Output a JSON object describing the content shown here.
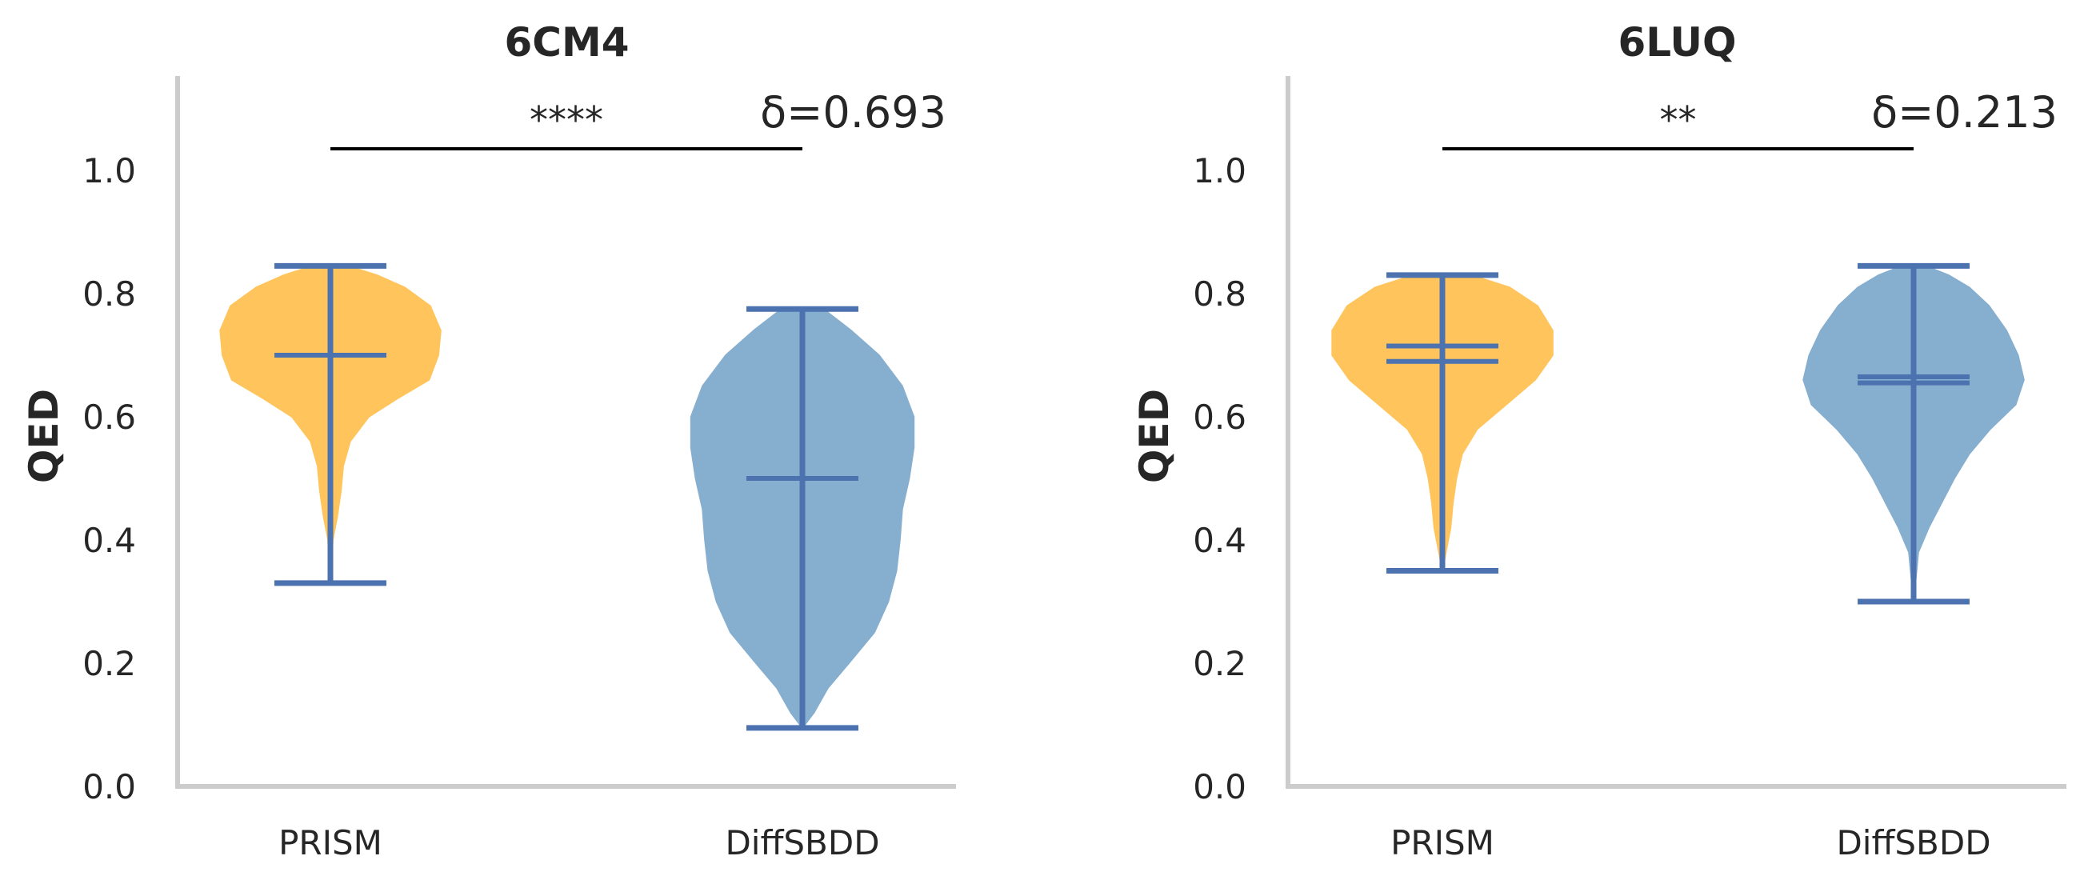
{
  "chart_data": [
    {
      "type": "violin",
      "title": "6CM4",
      "xlabel": "",
      "ylabel": "QED",
      "ylim": [
        0.0,
        1.15
      ],
      "yticks": [
        "0.0",
        "0.2",
        "0.4",
        "0.6",
        "0.8",
        "1.0"
      ],
      "categories": [
        "PRISM",
        "DiffSBDD"
      ],
      "grid": false,
      "series": [
        {
          "category": "PRISM",
          "color": "#FFC55C",
          "min": 0.33,
          "max": 0.845,
          "mean": 0.7,
          "median": 0.7,
          "density": [
            [
              0.33,
              0.0
            ],
            [
              0.4,
              0.02
            ],
            [
              0.44,
              0.06
            ],
            [
              0.48,
              0.09
            ],
            [
              0.52,
              0.11
            ],
            [
              0.56,
              0.17
            ],
            [
              0.6,
              0.33
            ],
            [
              0.63,
              0.58
            ],
            [
              0.66,
              0.85
            ],
            [
              0.7,
              0.93
            ],
            [
              0.74,
              0.95
            ],
            [
              0.78,
              0.86
            ],
            [
              0.81,
              0.64
            ],
            [
              0.83,
              0.4
            ],
            [
              0.845,
              0.15
            ]
          ]
        },
        {
          "category": "DiffSBDD",
          "color": "#86AECF",
          "min": 0.095,
          "max": 0.775,
          "mean": 0.5,
          "median": 0.5,
          "density": [
            [
              0.095,
              0.0
            ],
            [
              0.12,
              0.1
            ],
            [
              0.16,
              0.22
            ],
            [
              0.2,
              0.4
            ],
            [
              0.25,
              0.62
            ],
            [
              0.3,
              0.74
            ],
            [
              0.35,
              0.81
            ],
            [
              0.4,
              0.84
            ],
            [
              0.45,
              0.86
            ],
            [
              0.5,
              0.92
            ],
            [
              0.55,
              0.96
            ],
            [
              0.6,
              0.96
            ],
            [
              0.65,
              0.86
            ],
            [
              0.7,
              0.66
            ],
            [
              0.74,
              0.42
            ],
            [
              0.775,
              0.18
            ]
          ]
        }
      ],
      "annotation": {
        "bracket_y": 1.035,
        "stars": "****",
        "delta": "δ=0.693"
      }
    },
    {
      "type": "violin",
      "title": "6LUQ",
      "xlabel": "",
      "ylabel": "QED",
      "ylim": [
        0.0,
        1.15
      ],
      "yticks": [
        "0.0",
        "0.2",
        "0.4",
        "0.6",
        "0.8",
        "1.0"
      ],
      "categories": [
        "PRISM",
        "DiffSBDD"
      ],
      "grid": false,
      "series": [
        {
          "category": "PRISM",
          "color": "#FFC55C",
          "min": 0.35,
          "max": 0.83,
          "mean": 0.715,
          "median": 0.69,
          "density": [
            [
              0.35,
              0.0
            ],
            [
              0.38,
              0.03
            ],
            [
              0.42,
              0.07
            ],
            [
              0.46,
              0.09
            ],
            [
              0.5,
              0.12
            ],
            [
              0.54,
              0.17
            ],
            [
              0.58,
              0.3
            ],
            [
              0.62,
              0.55
            ],
            [
              0.66,
              0.8
            ],
            [
              0.7,
              0.95
            ],
            [
              0.74,
              0.95
            ],
            [
              0.78,
              0.82
            ],
            [
              0.81,
              0.58
            ],
            [
              0.83,
              0.25
            ]
          ]
        },
        {
          "category": "DiffSBDD",
          "color": "#86AECF",
          "min": 0.3,
          "max": 0.845,
          "mean": 0.665,
          "median": 0.655,
          "density": [
            [
              0.3,
              0.0
            ],
            [
              0.38,
              0.04
            ],
            [
              0.42,
              0.13
            ],
            [
              0.46,
              0.24
            ],
            [
              0.5,
              0.35
            ],
            [
              0.54,
              0.48
            ],
            [
              0.58,
              0.66
            ],
            [
              0.62,
              0.88
            ],
            [
              0.66,
              0.95
            ],
            [
              0.7,
              0.9
            ],
            [
              0.74,
              0.8
            ],
            [
              0.78,
              0.65
            ],
            [
              0.81,
              0.48
            ],
            [
              0.83,
              0.3
            ],
            [
              0.845,
              0.1
            ]
          ]
        }
      ],
      "annotation": {
        "bracket_y": 1.035,
        "stars": "**",
        "delta": "δ=0.213"
      }
    }
  ],
  "colors": {
    "axis": "#CCCCCC",
    "whisker": "#4C72B0",
    "bracket": "#000000"
  }
}
